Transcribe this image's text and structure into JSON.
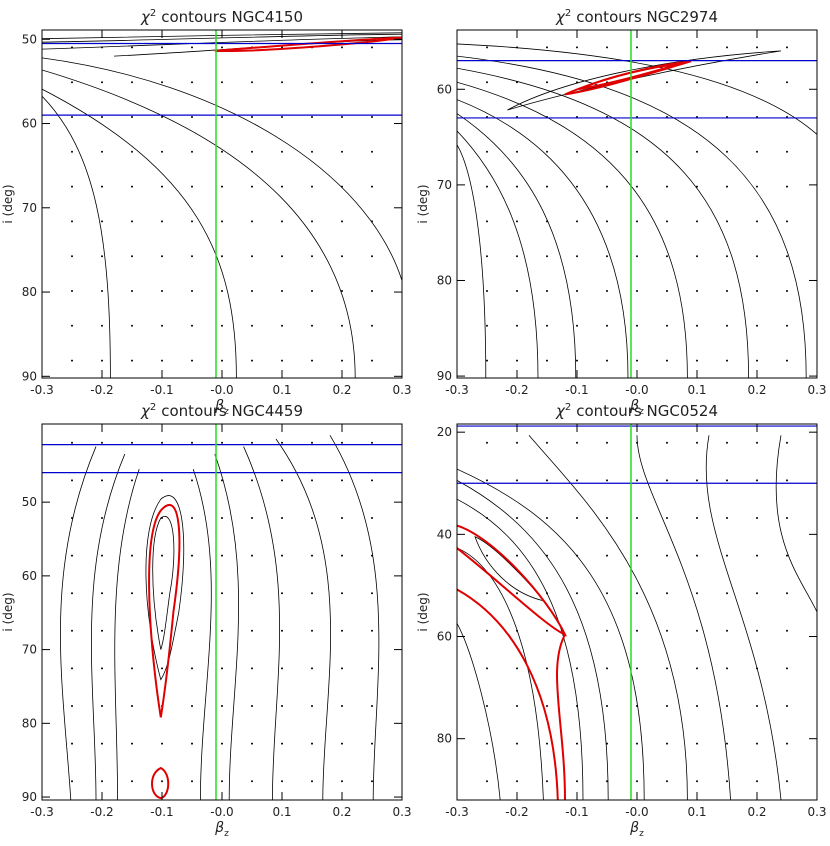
{
  "chart_data": [
    {
      "type": "contour",
      "title_symbol": "χ",
      "title_sup": "2",
      "title": "contours NGC4150",
      "x_label": "β",
      "x_label_sub": "z",
      "y_label": "i (deg)",
      "xlim": [
        -0.3,
        0.3
      ],
      "xticks": [
        -0.3,
        -0.2,
        -0.1,
        {
          "value": 0,
          "label": "-0.0"
        },
        0.1,
        0.2,
        0.3
      ],
      "ylim": [
        48.9,
        90.2
      ],
      "y_inverted": true,
      "yticks": [
        50,
        60,
        70,
        80,
        90
      ],
      "hlines": [
        {
          "value": 50.5,
          "color": "#0000cc"
        },
        {
          "value": 59,
          "color": "#0000cc"
        }
      ],
      "vline": {
        "value": -0.01,
        "color": "#22dd22"
      }
    },
    {
      "type": "contour",
      "title_symbol": "χ",
      "title_sup": "2",
      "title": "contours NGC2974",
      "x_label": "β",
      "x_label_sub": "z",
      "y_label": "i (deg)",
      "xlim": [
        -0.3,
        0.3
      ],
      "xticks": [
        -0.3,
        -0.2,
        -0.1,
        {
          "value": 0,
          "label": "-0.0"
        },
        0.1,
        0.2,
        0.3
      ],
      "ylim": [
        53.8,
        90.2
      ],
      "y_inverted": true,
      "yticks": [
        60,
        70,
        80,
        90
      ],
      "hlines": [
        {
          "value": 57,
          "color": "#0000cc"
        },
        {
          "value": 63,
          "color": "#0000cc"
        }
      ],
      "vline": {
        "value": -0.01,
        "color": "#22dd22"
      }
    },
    {
      "type": "contour",
      "title_symbol": "χ",
      "title_sup": "2",
      "title": "contours NGC4459",
      "x_label": "β",
      "x_label_sub": "z",
      "y_label": "i (deg)",
      "xlim": [
        -0.3,
        0.3
      ],
      "xticks": [
        -0.3,
        -0.2,
        -0.1,
        {
          "value": 0,
          "label": "-0.0"
        },
        0.1,
        0.2,
        0.3
      ],
      "ylim": [
        39.4,
        90.4
      ],
      "y_inverted": true,
      "yticks": [
        50,
        60,
        70,
        80,
        90
      ],
      "hlines": [
        {
          "value": 42.2,
          "color": "#0000cc"
        },
        {
          "value": 46,
          "color": "#0000cc"
        }
      ],
      "vline": {
        "value": -0.01,
        "color": "#22dd22"
      }
    },
    {
      "type": "contour",
      "title_symbol": "χ",
      "title_sup": "2",
      "title": "contours NGC0524",
      "x_label": "β",
      "x_label_sub": "z",
      "y_label": "i (deg)",
      "xlim": [
        -0.3,
        0.3
      ],
      "xticks": [
        -0.3,
        -0.2,
        -0.1,
        {
          "value": 0,
          "label": "-0.0"
        },
        0.1,
        0.2,
        0.3
      ],
      "ylim": [
        18.4,
        92
      ],
      "y_inverted": true,
      "yticks": [
        20,
        40,
        60,
        80
      ],
      "hlines": [
        {
          "value": 18.8,
          "color": "#0000cc"
        },
        {
          "value": 30,
          "color": "#0000cc"
        }
      ],
      "vline": {
        "value": -0.01,
        "color": "#22dd22"
      }
    }
  ]
}
